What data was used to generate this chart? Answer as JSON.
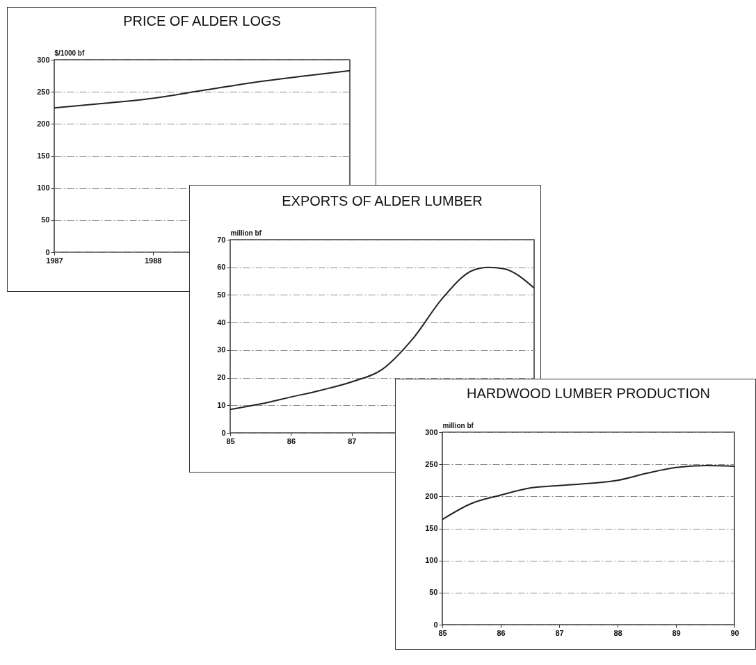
{
  "chart_data": [
    {
      "type": "line",
      "title": "PRICE OF ALDER LOGS",
      "ylabel": "$/1000 bf",
      "x": [
        1987,
        1987.5,
        1988,
        1988.5,
        1989,
        1989.5,
        1990
      ],
      "series": [
        {
          "color": "#222222",
          "values": [
            225,
            232,
            240,
            252,
            264,
            274,
            283
          ]
        }
      ],
      "xlim": [
        1987,
        1990
      ],
      "xticks": [
        1987,
        1988
      ],
      "ylim": [
        0,
        300
      ],
      "yticks": [
        0,
        50,
        100,
        150,
        200,
        250,
        300
      ],
      "grid": "y"
    },
    {
      "type": "line",
      "title": "EXPORTS OF ALDER LUMBER",
      "ylabel": "million bf",
      "x": [
        85,
        85.5,
        86,
        86.5,
        87,
        87.5,
        88,
        88.5,
        89,
        89.25,
        89.5,
        90
      ],
      "series": [
        {
          "color": "#222222",
          "values": [
            8.5,
            10.5,
            13,
            15.5,
            18.5,
            23,
            34,
            49,
            59,
            60,
            59.5,
            52.5
          ]
        }
      ],
      "xlim": [
        85,
        90
      ],
      "xticks": [
        85,
        86,
        87
      ],
      "ylim": [
        0,
        70
      ],
      "yticks": [
        0,
        10,
        20,
        30,
        40,
        50,
        60,
        70
      ],
      "grid": "y"
    },
    {
      "type": "line",
      "title": "HARDWOOD LUMBER PRODUCTION",
      "ylabel": "million bf",
      "x": [
        85,
        85.5,
        86,
        86.5,
        87,
        87.5,
        88,
        88.5,
        89,
        89.5,
        90
      ],
      "series": [
        {
          "color": "#222222",
          "values": [
            164,
            189,
            202,
            213,
            217,
            220,
            225,
            236,
            245,
            248,
            247
          ]
        }
      ],
      "xlim": [
        85,
        90
      ],
      "xticks": [
        85,
        86,
        87,
        88,
        89,
        90
      ],
      "ylim": [
        0,
        300
      ],
      "yticks": [
        0,
        50,
        100,
        150,
        200,
        250,
        300
      ],
      "grid": "y"
    }
  ]
}
